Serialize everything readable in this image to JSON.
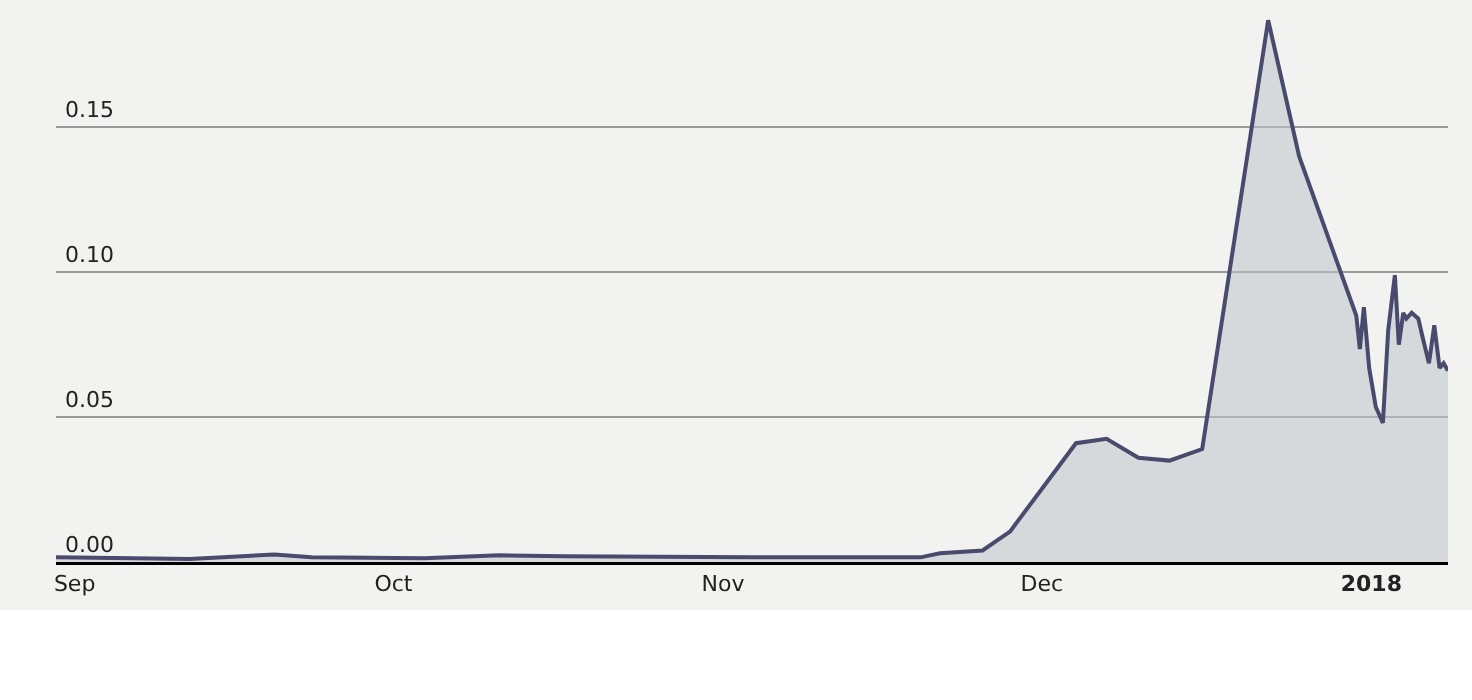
{
  "chart_data": {
    "type": "area",
    "x": [
      "2017-08-30T06:00",
      "2017-09-11T20:00",
      "2017-09-19T19:00",
      "2017-09-23T07:00",
      "2017-10-03T22:00",
      "2017-10-10T22:00",
      "2017-10-17T02:00",
      "2017-11-03T19:00",
      "2017-11-19T14:00",
      "2017-11-21T10:00",
      "2017-11-25T10:00",
      "2017-11-28T00:00",
      "2017-12-04T05:00",
      "2017-12-07T02:00",
      "2017-12-10T02:00",
      "2017-12-13T00:00",
      "2017-12-16T02:00",
      "2017-12-22T07:00",
      "2017-12-25T05:00",
      "2017-12-30T14:00",
      "2017-12-30T22:00",
      "2017-12-31T07:00",
      "2017-12-31T19:00",
      "2018-01-01T10:00",
      "2018-01-02T02:00",
      "2018-01-02T14:00",
      "2018-01-03T05:00",
      "2018-01-03T14:00",
      "2018-01-04T00:00",
      "2018-01-04T07:00",
      "2018-01-04T19:00",
      "2018-01-05T10:00",
      "2018-01-05T19:00",
      "2018-01-06T10:00",
      "2018-01-06T22:00",
      "2018-01-07T10:00",
      "2018-01-07T19:00",
      "2018-01-08T05:00"
    ],
    "series": [
      {
        "color": "#4a4a6e",
        "values": [
          0.0016,
          0.001,
          0.0026,
          0.0016,
          0.0013,
          0.0023,
          0.002,
          0.0016,
          0.0016,
          0.003,
          0.004,
          0.0105,
          0.041,
          0.0425,
          0.036,
          0.035,
          0.039,
          0.187,
          0.14,
          0.085,
          0.0735,
          0.088,
          0.067,
          0.0535,
          0.048,
          0.08,
          0.099,
          0.075,
          0.086,
          0.084,
          0.086,
          0.084,
          0.078,
          0.0686,
          0.0817,
          0.067,
          0.0686,
          0.066
        ]
      }
    ],
    "xlim": [
      "2017-08-30T06:00",
      "2018-01-08T05:00"
    ],
    "xticks": [
      {
        "value": "2017-09-01",
        "label": "Sep"
      },
      {
        "value": "2017-10-01",
        "label": "Oct"
      },
      {
        "value": "2017-11-01",
        "label": "Nov"
      },
      {
        "value": "2017-12-01",
        "label": "Dec"
      },
      {
        "value": "2018-01-01",
        "label": "2018"
      }
    ],
    "ylim": [
      0,
      0.194
    ],
    "yticks": [
      {
        "value": 0,
        "label": "0.00"
      },
      {
        "value": 0.05,
        "label": "0.05"
      },
      {
        "value": 0.1,
        "label": "0.10"
      },
      {
        "value": 0.15,
        "label": "0.15"
      }
    ],
    "grid": "y",
    "marker": "none"
  }
}
